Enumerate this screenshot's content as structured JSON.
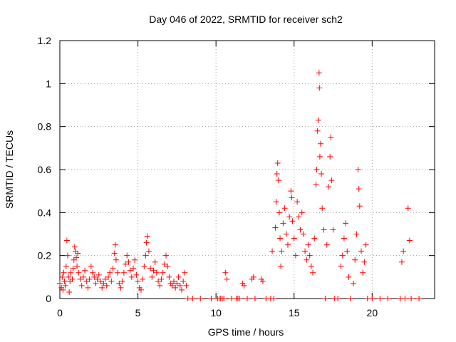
{
  "chart_data": {
    "type": "scatter",
    "title": "Day 046 of 2022, SRMTID for receiver sch2",
    "xlabel": "GPS time / hours",
    "ylabel": "SRMTID / TECUs",
    "xlim": [
      0,
      24
    ],
    "ylim": [
      0,
      1.2
    ],
    "x_ticks": [
      0,
      5,
      10,
      15,
      20
    ],
    "x_tick_labels": [
      "0",
      "5",
      "10",
      "15",
      "20"
    ],
    "y_ticks": [
      0,
      0.2,
      0.4,
      0.6,
      0.8,
      1.0,
      1.2
    ],
    "y_tick_labels": [
      "0",
      "0.2",
      "0.4",
      "0.6",
      "0.8",
      "1",
      "1.2"
    ],
    "grid": true,
    "marker": "plus",
    "series": [
      {
        "name": "SRMTID sch2",
        "color": "#ff0000",
        "points": [
          [
            0.0,
            0.07
          ],
          [
            0.1,
            0.05
          ],
          [
            0.15,
            0.1
          ],
          [
            0.2,
            0.04
          ],
          [
            0.25,
            0.12
          ],
          [
            0.3,
            0.08
          ],
          [
            0.35,
            0.06
          ],
          [
            0.4,
            0.15
          ],
          [
            0.45,
            0.27
          ],
          [
            0.5,
            0.2
          ],
          [
            0.55,
            0.1
          ],
          [
            0.6,
            0.03
          ],
          [
            0.65,
            0.08
          ],
          [
            0.7,
            0.12
          ],
          [
            0.8,
            0.09
          ],
          [
            0.85,
            0.14
          ],
          [
            0.9,
            0.18
          ],
          [
            0.95,
            0.24
          ],
          [
            1.0,
            0.22
          ],
          [
            1.05,
            0.19
          ],
          [
            1.1,
            0.15
          ],
          [
            1.15,
            0.21
          ],
          [
            1.2,
            0.12
          ],
          [
            1.3,
            0.09
          ],
          [
            1.4,
            0.06
          ],
          [
            1.5,
            0.1
          ],
          [
            1.6,
            0.13
          ],
          [
            1.7,
            0.08
          ],
          [
            1.8,
            0.05
          ],
          [
            1.9,
            0.09
          ],
          [
            2.0,
            0.15
          ],
          [
            2.1,
            0.12
          ],
          [
            2.2,
            0.1
          ],
          [
            2.3,
            0.07
          ],
          [
            2.4,
            0.09
          ],
          [
            2.5,
            0.11
          ],
          [
            2.6,
            0.08
          ],
          [
            2.7,
            0.05
          ],
          [
            2.8,
            0.07
          ],
          [
            2.9,
            0.09
          ],
          [
            3.0,
            0.06
          ],
          [
            3.1,
            0.1
          ],
          [
            3.2,
            0.12
          ],
          [
            3.3,
            0.08
          ],
          [
            3.4,
            0.14
          ],
          [
            3.5,
            0.21
          ],
          [
            3.55,
            0.25
          ],
          [
            3.6,
            0.18
          ],
          [
            3.7,
            0.12
          ],
          [
            3.8,
            0.07
          ],
          [
            3.9,
            0.05
          ],
          [
            4.0,
            0.08
          ],
          [
            4.1,
            0.12
          ],
          [
            4.2,
            0.16
          ],
          [
            4.3,
            0.2
          ],
          [
            4.4,
            0.17
          ],
          [
            4.5,
            0.13
          ],
          [
            4.6,
            0.1
          ],
          [
            4.7,
            0.14
          ],
          [
            4.8,
            0.18
          ],
          [
            4.9,
            0.11
          ],
          [
            5.0,
            0.08
          ],
          [
            5.1,
            0.05
          ],
          [
            5.2,
            0.04
          ],
          [
            5.3,
            0.09
          ],
          [
            5.4,
            0.15
          ],
          [
            5.5,
            0.2
          ],
          [
            5.55,
            0.26
          ],
          [
            5.6,
            0.29
          ],
          [
            5.7,
            0.22
          ],
          [
            5.8,
            0.14
          ],
          [
            5.9,
            0.1
          ],
          [
            6.0,
            0.13
          ],
          [
            6.1,
            0.17
          ],
          [
            6.2,
            0.12
          ],
          [
            6.3,
            0.08
          ],
          [
            6.4,
            0.06
          ],
          [
            6.5,
            0.09
          ],
          [
            6.6,
            0.12
          ],
          [
            6.7,
            0.16
          ],
          [
            6.8,
            0.2
          ],
          [
            6.9,
            0.15
          ],
          [
            7.0,
            0.1
          ],
          [
            7.1,
            0.07
          ],
          [
            7.2,
            0.06
          ],
          [
            7.3,
            0.08
          ],
          [
            7.4,
            0.05
          ],
          [
            7.5,
            0.07
          ],
          [
            7.6,
            0.1
          ],
          [
            7.7,
            0.06
          ],
          [
            7.8,
            0.04
          ],
          [
            7.9,
            0.08
          ],
          [
            8.0,
            0.12
          ],
          [
            8.1,
            0.06
          ],
          [
            8.2,
            0.0
          ],
          [
            8.5,
            0.0
          ],
          [
            9.0,
            0.0
          ],
          [
            9.7,
            0.0
          ],
          [
            10.1,
            0.0
          ],
          [
            10.2,
            0.0
          ],
          [
            10.3,
            0.0
          ],
          [
            10.4,
            0.0
          ],
          [
            10.5,
            0.0
          ],
          [
            10.6,
            0.12
          ],
          [
            10.7,
            0.09
          ],
          [
            11.0,
            0.0
          ],
          [
            11.3,
            0.0
          ],
          [
            11.4,
            0.0
          ],
          [
            11.5,
            0.0
          ],
          [
            11.7,
            0.07
          ],
          [
            11.8,
            0.06
          ],
          [
            12.0,
            0.0
          ],
          [
            12.3,
            0.09
          ],
          [
            12.4,
            0.1
          ],
          [
            12.5,
            0.0
          ],
          [
            12.9,
            0.09
          ],
          [
            13.0,
            0.08
          ],
          [
            13.2,
            0.0
          ],
          [
            13.5,
            0.0
          ],
          [
            13.6,
            0.22
          ],
          [
            13.7,
            0.0
          ],
          [
            13.8,
            0.33
          ],
          [
            13.85,
            0.45
          ],
          [
            13.9,
            0.58
          ],
          [
            13.95,
            0.63
          ],
          [
            14.0,
            0.55
          ],
          [
            14.05,
            0.4
          ],
          [
            14.1,
            0.28
          ],
          [
            14.15,
            0.15
          ],
          [
            14.2,
            0.22
          ],
          [
            14.3,
            0.35
          ],
          [
            14.4,
            0.42
          ],
          [
            14.5,
            0.3
          ],
          [
            14.6,
            0.25
          ],
          [
            14.7,
            0.38
          ],
          [
            14.8,
            0.5
          ],
          [
            14.85,
            0.47
          ],
          [
            14.9,
            0.36
          ],
          [
            15.0,
            0.28
          ],
          [
            15.1,
            0.2
          ],
          [
            15.2,
            0.45
          ],
          [
            15.3,
            0.38
          ],
          [
            15.4,
            0.32
          ],
          [
            15.5,
            0.4
          ],
          [
            15.6,
            0.3
          ],
          [
            15.7,
            0.22
          ],
          [
            15.8,
            0.18
          ],
          [
            15.9,
            0.25
          ],
          [
            16.0,
            0.2
          ],
          [
            16.1,
            0.15
          ],
          [
            16.2,
            0.12
          ],
          [
            16.3,
            0.28
          ],
          [
            16.4,
            0.53
          ],
          [
            16.45,
            0.6
          ],
          [
            16.5,
            0.78
          ],
          [
            16.55,
            0.83
          ],
          [
            16.6,
            1.05
          ],
          [
            16.62,
            0.98
          ],
          [
            16.65,
            0.66
          ],
          [
            16.7,
            0.72
          ],
          [
            16.75,
            0.58
          ],
          [
            16.8,
            0.42
          ],
          [
            16.9,
            0.32
          ],
          [
            17.0,
            0.0
          ],
          [
            17.1,
            0.25
          ],
          [
            17.2,
            0.52
          ],
          [
            17.3,
            0.66
          ],
          [
            17.35,
            0.75
          ],
          [
            17.4,
            0.55
          ],
          [
            17.5,
            0.32
          ],
          [
            17.6,
            0.0
          ],
          [
            17.8,
            0.0
          ],
          [
            18.0,
            0.15
          ],
          [
            18.1,
            0.2
          ],
          [
            18.2,
            0.28
          ],
          [
            18.3,
            0.35
          ],
          [
            18.4,
            0.22
          ],
          [
            18.5,
            0.1
          ],
          [
            18.6,
            0.0
          ],
          [
            18.8,
            0.07
          ],
          [
            18.9,
            0.18
          ],
          [
            19.0,
            0.3
          ],
          [
            19.1,
            0.6
          ],
          [
            19.15,
            0.51
          ],
          [
            19.2,
            0.43
          ],
          [
            19.3,
            0.22
          ],
          [
            19.4,
            0.12
          ],
          [
            19.5,
            0.17
          ],
          [
            19.6,
            0.25
          ],
          [
            19.7,
            0.0
          ],
          [
            20.0,
            0.0
          ],
          [
            20.5,
            0.0
          ],
          [
            21.0,
            0.0
          ],
          [
            21.8,
            0.0
          ],
          [
            21.9,
            0.17
          ],
          [
            22.0,
            0.22
          ],
          [
            22.1,
            0.0
          ],
          [
            22.3,
            0.42
          ],
          [
            22.4,
            0.27
          ],
          [
            22.5,
            0.0
          ],
          [
            23.0,
            0.0
          ]
        ]
      }
    ]
  }
}
